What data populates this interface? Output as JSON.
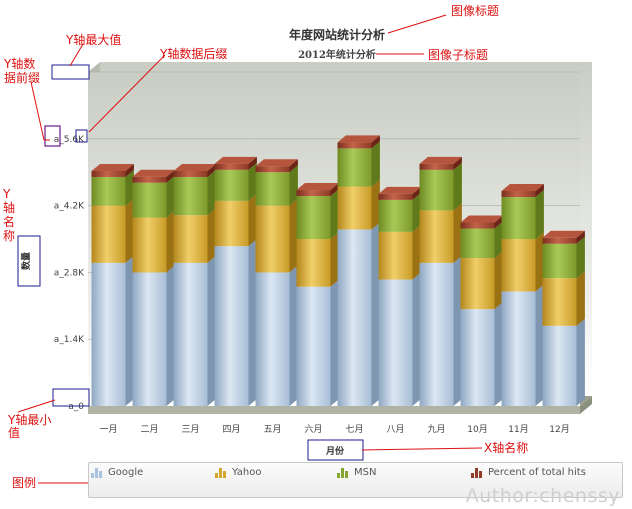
{
  "chart_data": {
    "type": "bar",
    "stacked": true,
    "style": "3d",
    "title": "年度网站统计分析",
    "subtitle": "2012年统计分析",
    "xlabel": "月份",
    "ylabel": "数量",
    "ylim": [
      0,
      7000
    ],
    "yticks": [
      {
        "value": 0,
        "label": "a_0"
      },
      {
        "value": 1400,
        "label": "a_1.4K"
      },
      {
        "value": 2800,
        "label": "a_2.8K"
      },
      {
        "value": 4200,
        "label": "a_4.2K"
      },
      {
        "value": 5600,
        "label": "a_5.6K"
      },
      {
        "value": 7000,
        "label": "a_7K"
      }
    ],
    "categories": [
      "一月",
      "二月",
      "三月",
      "四月",
      "五月",
      "六月",
      "七月",
      "八月",
      "九月",
      "10月",
      "11月",
      "12月"
    ],
    "series": [
      {
        "name": "Google",
        "color": "#a9c2de",
        "values": [
          3000,
          2800,
          3000,
          3350,
          2800,
          2500,
          3700,
          2650,
          3000,
          2030,
          2400,
          1680
        ]
      },
      {
        "name": "Yahoo",
        "color": "#d4a62a",
        "values": [
          1200,
          1150,
          1000,
          950,
          1400,
          1000,
          900,
          1000,
          1100,
          1070,
          1100,
          1000
        ]
      },
      {
        "name": "MSN",
        "color": "#86a531",
        "values": [
          600,
          730,
          800,
          650,
          700,
          900,
          800,
          670,
          850,
          620,
          880,
          720
        ]
      },
      {
        "name": "Percent of total hits",
        "color": "#8f3b28",
        "values": [
          0,
          0,
          0,
          0,
          0,
          0,
          0,
          0,
          0,
          0,
          0,
          0
        ]
      }
    ],
    "legend_position": "bottom",
    "grid": true
  },
  "annotations": [
    {
      "id": "title",
      "text": "图像标题"
    },
    {
      "id": "subtitle",
      "text": "图像子标题"
    },
    {
      "id": "ymax",
      "text": "Y轴最大值"
    },
    {
      "id": "ysuffix",
      "text": "Y轴数据后缀"
    },
    {
      "id": "yprefix",
      "text": "Y轴数\n据前缀"
    },
    {
      "id": "yname",
      "text": "Y\n轴\n名\n称"
    },
    {
      "id": "ymin",
      "text": "Y轴最小\n值"
    },
    {
      "id": "xname",
      "text": "X轴名称"
    },
    {
      "id": "legend",
      "text": "图例"
    }
  ],
  "watermark": "Author:chenssy"
}
